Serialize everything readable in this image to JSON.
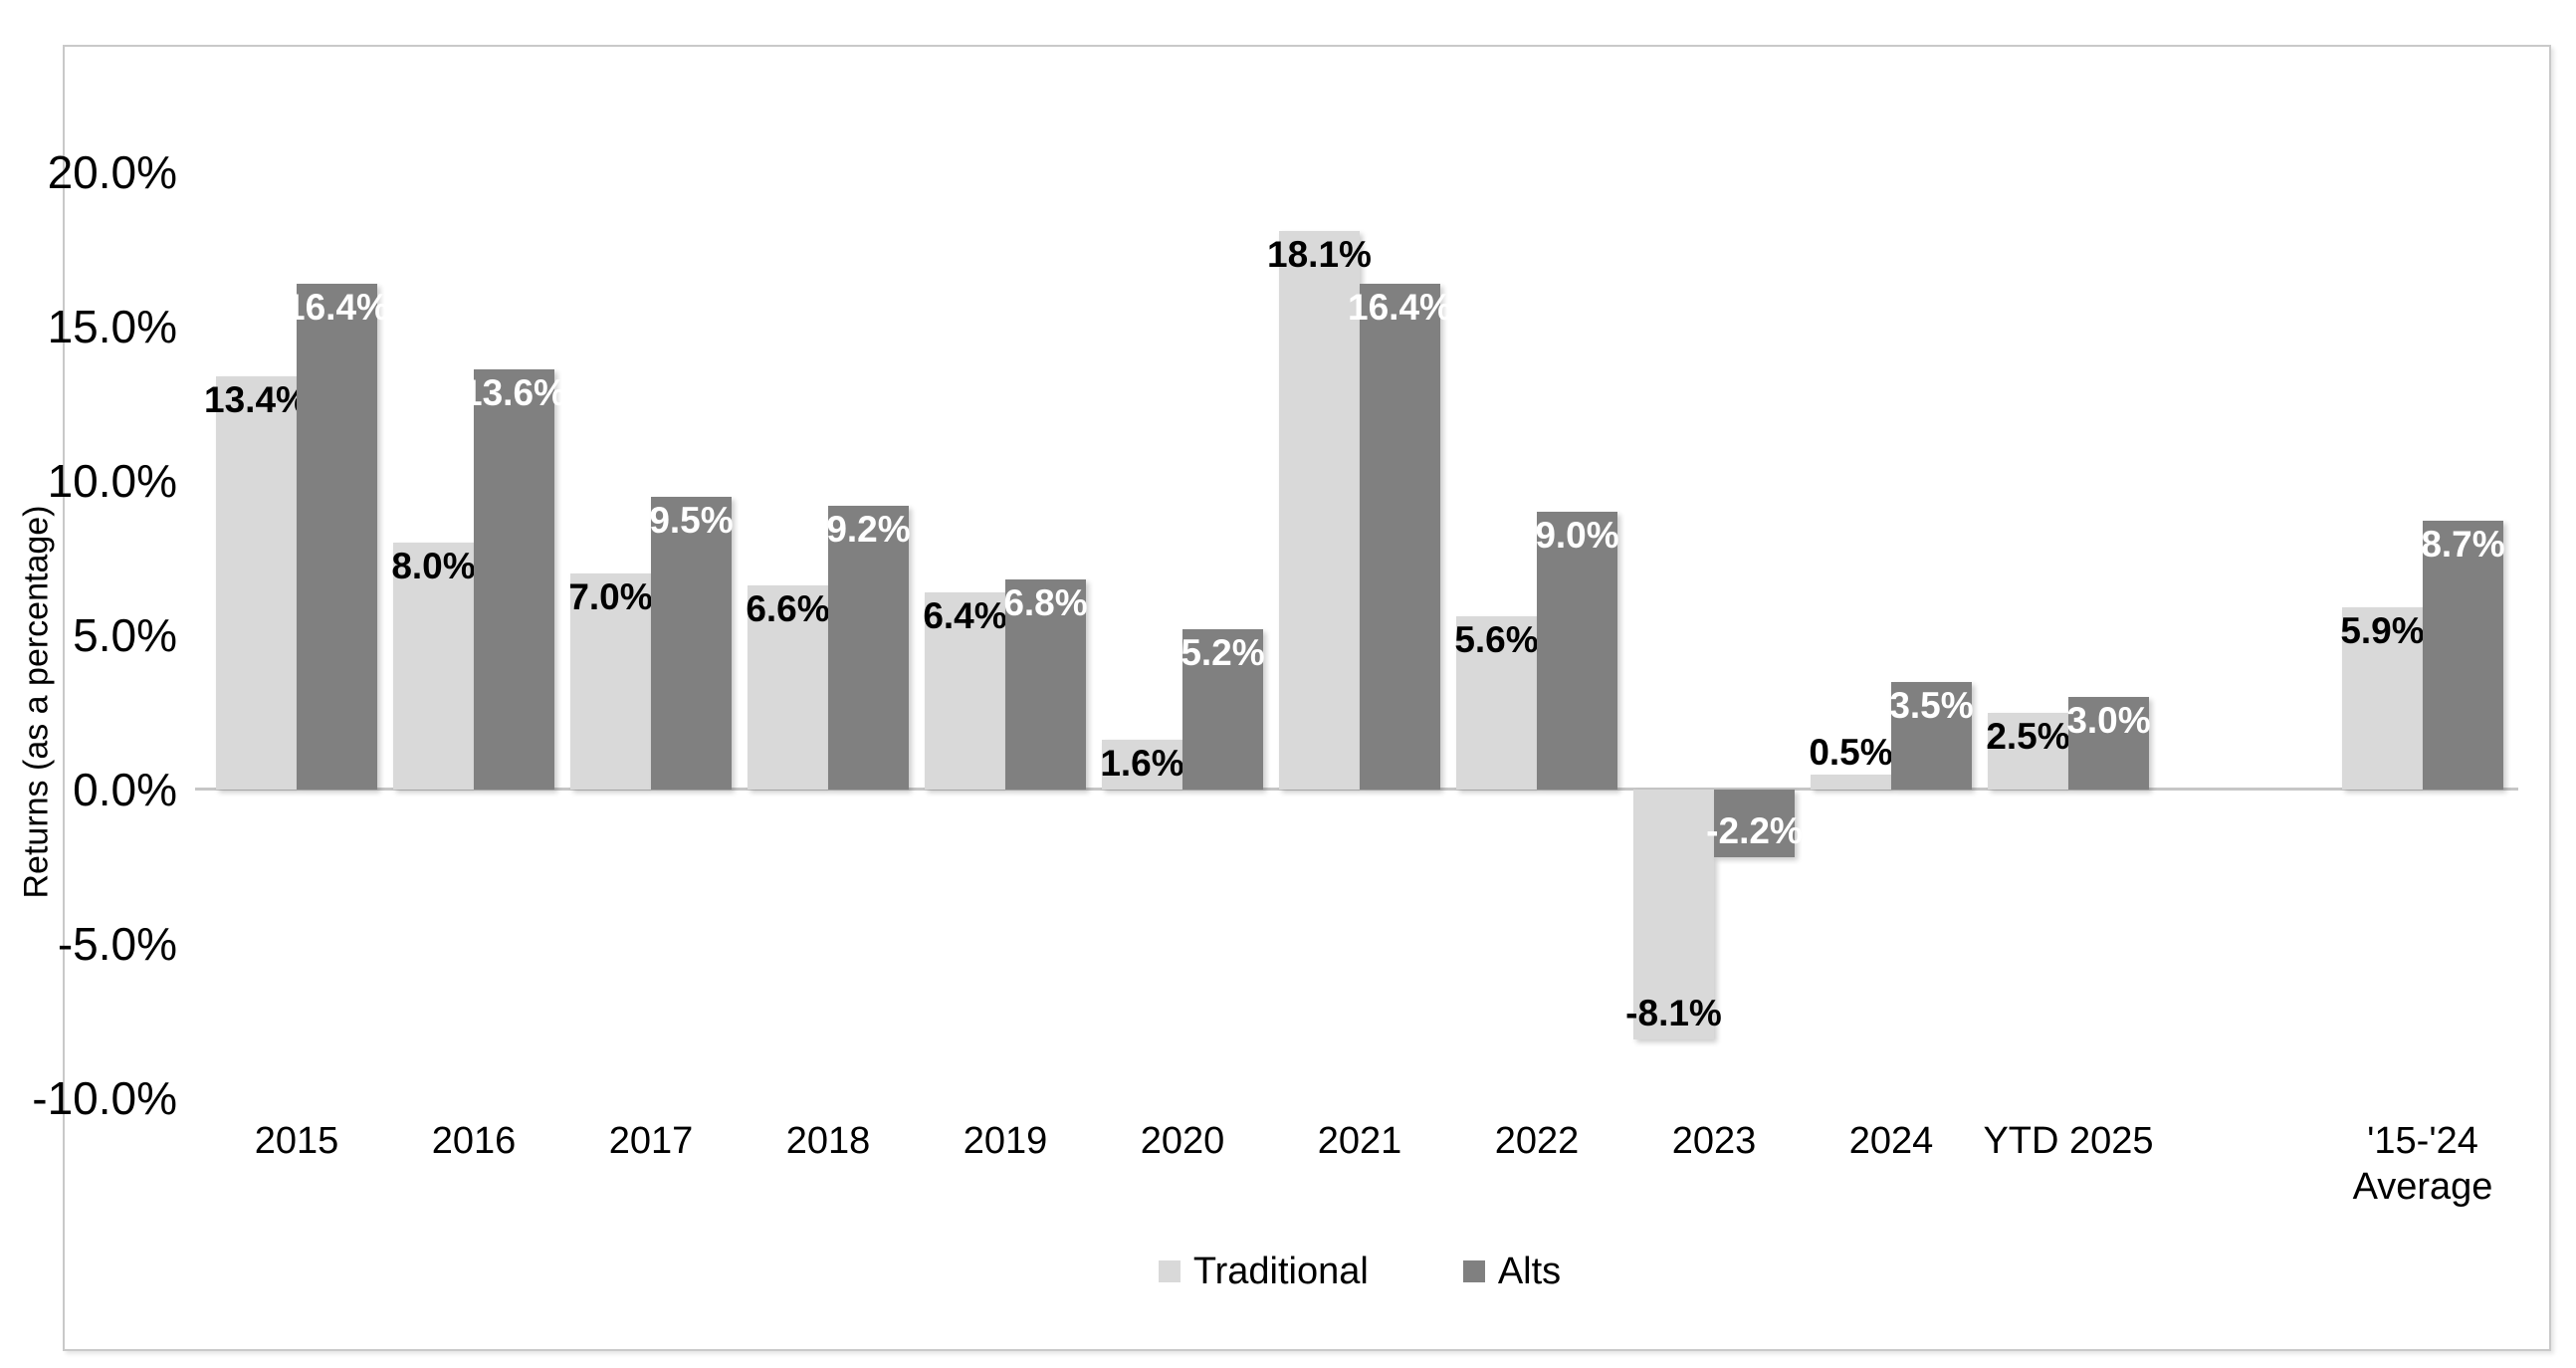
{
  "chart_data": {
    "type": "bar",
    "title": "",
    "ylabel": "Returns (as a percentage)",
    "xlabel": "",
    "ylim": [
      -10,
      20
    ],
    "grid": false,
    "legend_position": "bottom",
    "yticks": [
      {
        "value": 20,
        "label": "20.0%"
      },
      {
        "value": 15,
        "label": "15.0%"
      },
      {
        "value": 10,
        "label": "10.0%"
      },
      {
        "value": 5,
        "label": "5.0%"
      },
      {
        "value": 0,
        "label": "0.0%"
      },
      {
        "value": -5,
        "label": "-5.0%"
      },
      {
        "value": -10,
        "label": "-10.0%"
      }
    ],
    "categories": [
      {
        "label": "2015"
      },
      {
        "label": "2016"
      },
      {
        "label": "2017"
      },
      {
        "label": "2018"
      },
      {
        "label": "2019"
      },
      {
        "label": "2020"
      },
      {
        "label": "2021"
      },
      {
        "label": "2022"
      },
      {
        "label": "2023"
      },
      {
        "label": "2024"
      },
      {
        "label": "YTD 2025"
      },
      {
        "label": "'15-'24",
        "label2": "Average",
        "gap_before": true
      }
    ],
    "series": [
      {
        "name": "Traditional",
        "color": "#d9d9d9",
        "label_color": "#000000",
        "values": [
          13.4,
          8.0,
          7.0,
          6.6,
          6.4,
          1.6,
          18.1,
          5.6,
          -8.1,
          0.5,
          2.5,
          5.9
        ],
        "labels": [
          "13.4%",
          "8.0%",
          "7.0%",
          "6.6%",
          "6.4%",
          "1.6%",
          "18.1%",
          "5.6%",
          "-8.1%",
          "0.5%",
          "2.5%",
          "5.9%"
        ]
      },
      {
        "name": "Alts",
        "color": "#808080",
        "label_color": "#ffffff",
        "values": [
          16.4,
          13.6,
          9.5,
          9.2,
          6.8,
          5.2,
          16.4,
          9.0,
          -2.2,
          3.5,
          3.0,
          8.7
        ],
        "labels": [
          "16.4%",
          "13.6%",
          "9.5%",
          "9.2%",
          "6.8%",
          "5.2%",
          "16.4%",
          "9.0%",
          "-2.2%",
          "3.5%",
          "3.0%",
          "8.7%"
        ]
      }
    ]
  }
}
